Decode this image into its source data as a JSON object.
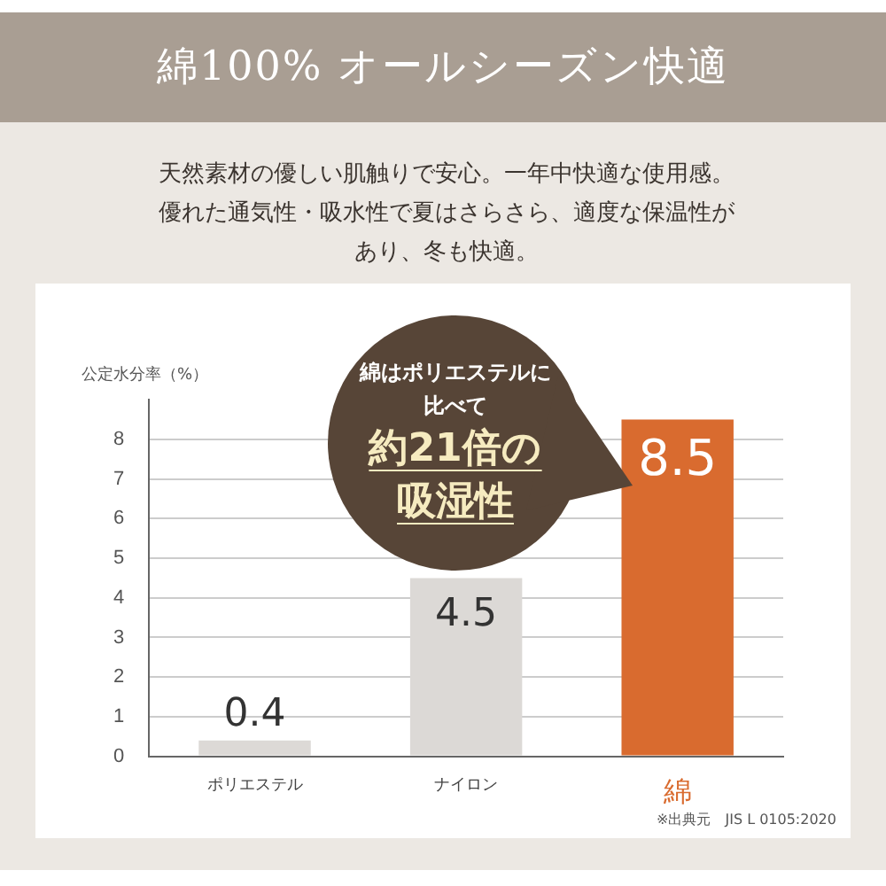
{
  "chart_data": {
    "type": "bar",
    "title": "綿100% オールシーズン快適",
    "subtitle": "天然素材の優しい肌触りで安心。一年中快適な使用感。優れた通気性・吸水性で夏はさらさら、適度な保温性があり、冬も快適。",
    "ylabel": "公定水分率（%）",
    "categories": [
      "ポリエステル",
      "ナイロン",
      "綿"
    ],
    "values": [
      0.4,
      4.5,
      8.5
    ],
    "colors": [
      "#dcd9d6",
      "#dcd9d6",
      "#d96b2f"
    ],
    "ylim": [
      0,
      9
    ],
    "yticks": [
      0,
      1,
      2,
      3,
      4,
      5,
      6,
      7,
      8
    ],
    "grid": "y",
    "data_labels": true,
    "legend": false,
    "annotations": [
      "綿はポリエステルに比べて",
      "約21倍の吸湿性",
      "※出典元　JIS L 0105:2020"
    ]
  }
}
